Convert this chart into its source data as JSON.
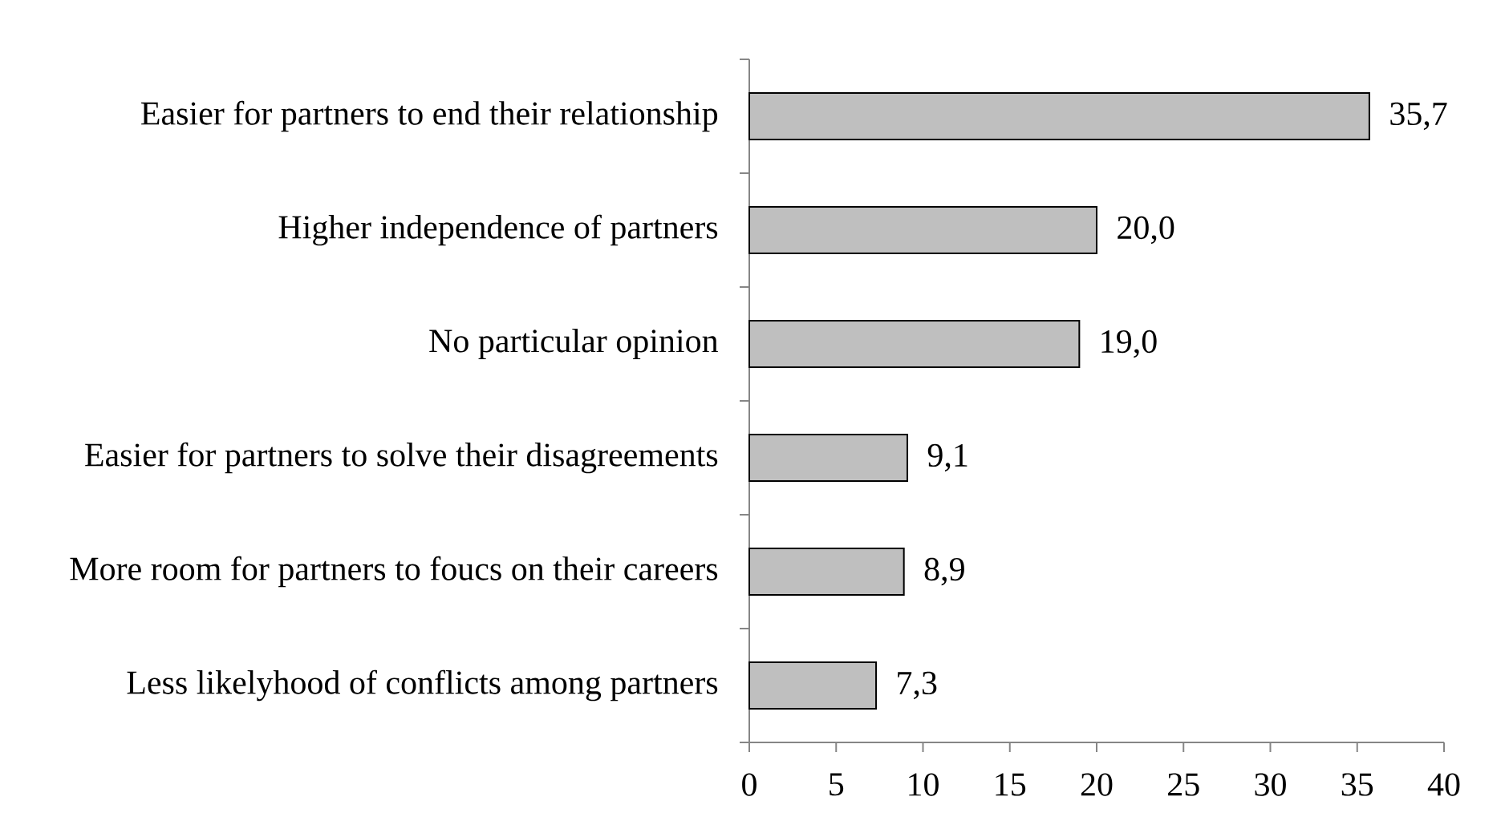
{
  "chart_data": {
    "type": "bar",
    "orientation": "horizontal",
    "categories": [
      "Easier for partners to end their relationship",
      "Higher independence of partners",
      "No particular opinion",
      "Easier for partners to solve their disagreements",
      "More room for partners to foucs on their careers",
      "Less likelyhood of conflicts among partners"
    ],
    "values": [
      35.7,
      20.0,
      19.0,
      9.1,
      8.9,
      7.3
    ],
    "value_labels": [
      "35,7",
      "20,0",
      "19,0",
      "9,1",
      "8,9",
      "7,3"
    ],
    "color": "#bfbfbf",
    "xlim": [
      0,
      40
    ],
    "xticks": [
      0,
      5,
      10,
      15,
      20,
      25,
      30,
      35,
      40
    ]
  }
}
